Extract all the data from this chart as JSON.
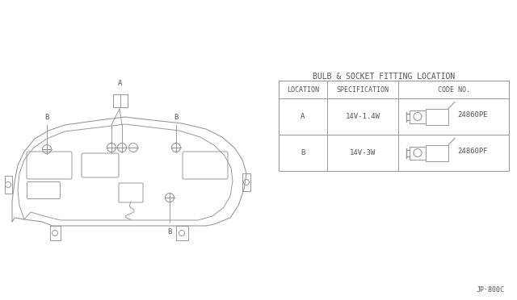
{
  "bg_color": "#ffffff",
  "line_color": "#999999",
  "text_color": "#555555",
  "title": "BULB & SOCKET FITTING LOCATION",
  "table_headers": [
    "LOCATION",
    "SPECIFICATION",
    "CODE NO."
  ],
  "row_A": [
    "A",
    "14V-1.4W",
    "24860PE"
  ],
  "row_B": [
    "B",
    "14V-3W",
    "24860PF"
  ],
  "diagram_label": "JP·800C",
  "font_size": 6.5,
  "title_font_size": 7.0
}
